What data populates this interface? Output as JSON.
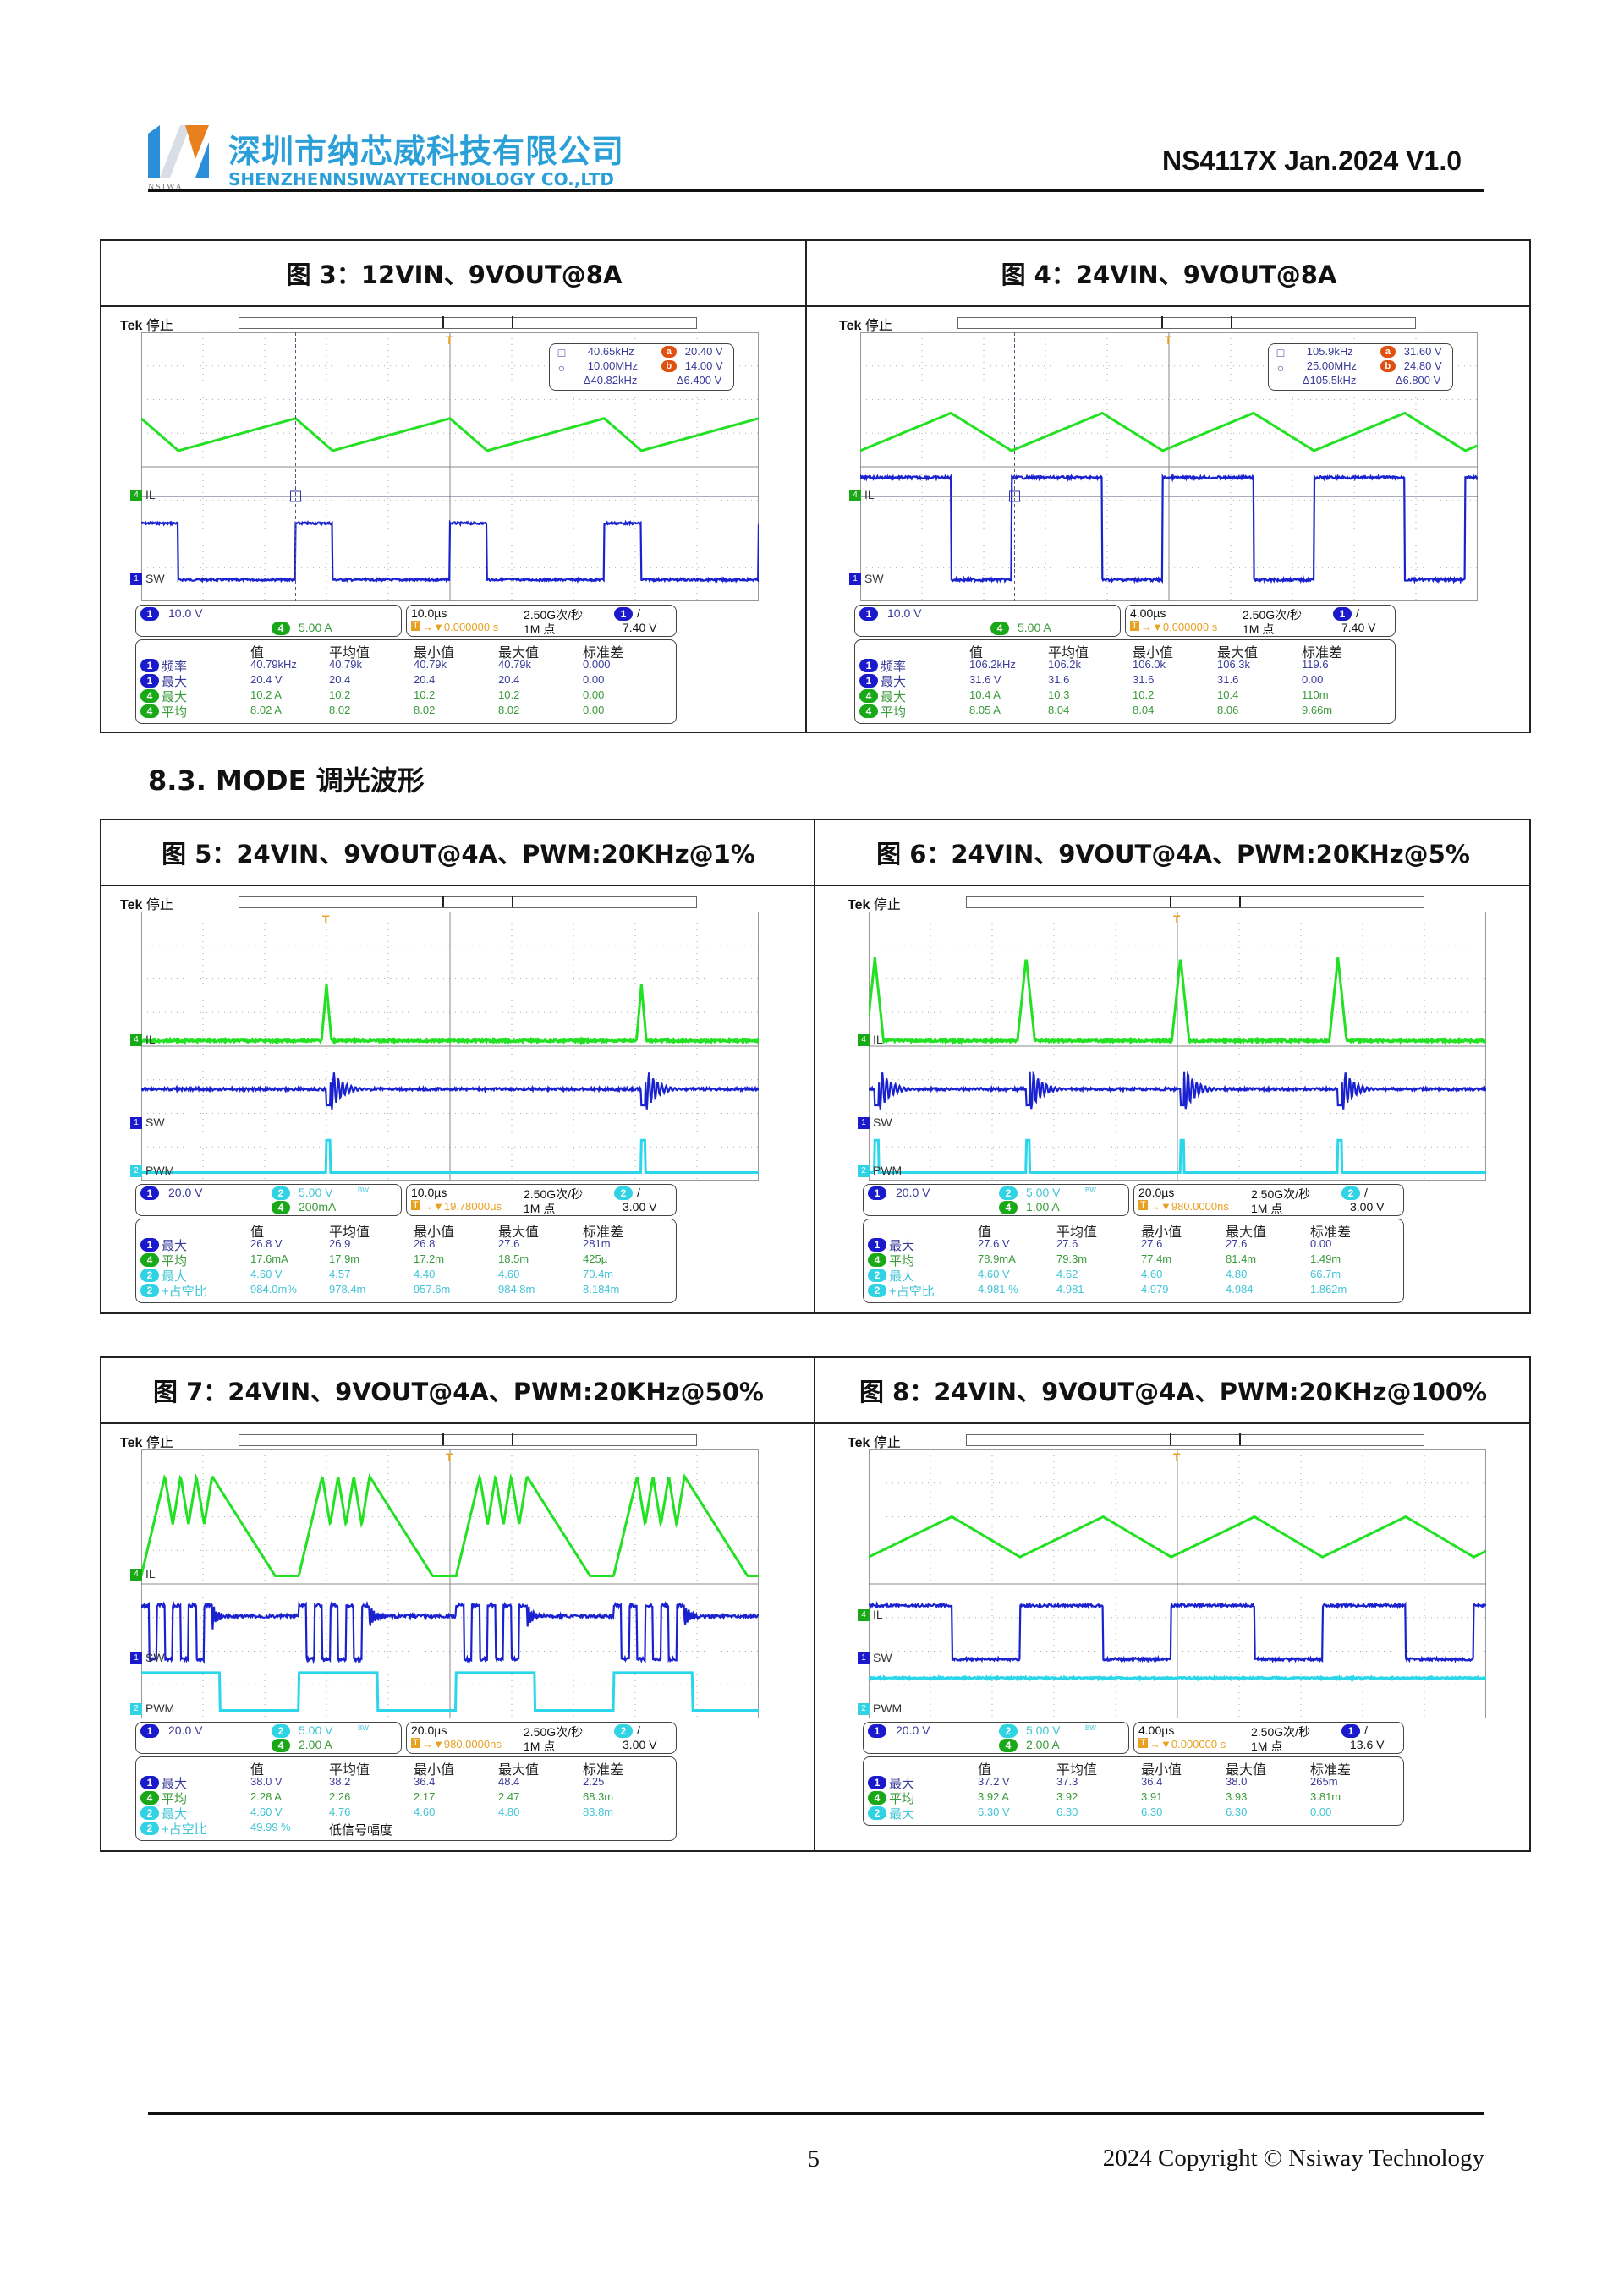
{
  "header": {
    "logo_text": "NSIWA",
    "company_cn": "深圳市纳芯威科技有限公司",
    "company_en": "SHENZHENNSIWAYTECHNOLOGY CO.,LTD",
    "doc_id": "NS4117X Jan.2024 V1.0"
  },
  "section_title": "8.3. MODE 调光波形",
  "colors": {
    "ch1": "#1a1acc",
    "ch2": "#2fd3e3",
    "ch4": "#18a818",
    "trace_green": "#22e022",
    "trace_blue": "#1a22d0",
    "trace_cyan": "#2ad6ea",
    "marker_orange": "#e8a020",
    "cursor_red": "#e05010"
  },
  "meas_headers": [
    "值",
    "平均值",
    "最小值",
    "最大值",
    "标准差"
  ],
  "scope_common": {
    "brand": "Tek",
    "state": "停止",
    "sample_rate": "2.50G次/秒",
    "record": "1M 点"
  },
  "figures": [
    {
      "title": "图 3：12VIN、9VOUT@8A",
      "channels": [
        "IL",
        "SW"
      ],
      "ch1_scale": "10.0 V",
      "ch2_scale": "",
      "ch4_scale": "5.00 A",
      "bw_mark": "",
      "timebase": "10.0µs",
      "trigger_pos": "→▼0.000000 s",
      "trigger_ch": "1",
      "trigger_level": "7.40 V",
      "cursor": {
        "f1": "40.65kHz",
        "f2": "10.00MHz",
        "df": "Δ40.82kHz",
        "va": "20.40 V",
        "vb": "14.00 V",
        "dv": "Δ6.400 V"
      },
      "rows": [
        {
          "ch": "1",
          "label": "频率",
          "v": [
            "40.79kHz",
            "40.79k",
            "40.79k",
            "40.79k",
            "0.000"
          ]
        },
        {
          "ch": "1",
          "label": "最大",
          "v": [
            "20.4 V",
            "20.4",
            "20.4",
            "20.4",
            "0.00"
          ]
        },
        {
          "ch": "4",
          "label": "最大",
          "v": [
            "10.2 A",
            "10.2",
            "10.2",
            "10.2",
            "0.00"
          ]
        },
        {
          "ch": "4",
          "label": "平均",
          "v": [
            "8.02 A",
            "8.02",
            "8.02",
            "8.02",
            "0.00"
          ]
        }
      ]
    },
    {
      "title": "图 4：24VIN、9VOUT@8A",
      "channels": [
        "IL",
        "SW"
      ],
      "ch1_scale": "10.0 V",
      "ch2_scale": "",
      "ch4_scale": "5.00 A",
      "bw_mark": "",
      "timebase": "4.00µs",
      "trigger_pos": "→▼0.000000 s",
      "trigger_ch": "1",
      "trigger_level": "7.40 V",
      "cursor": {
        "f1": "105.9kHz",
        "f2": "25.00MHz",
        "df": "Δ105.5kHz",
        "va": "31.60 V",
        "vb": "24.80 V",
        "dv": "Δ6.800 V"
      },
      "rows": [
        {
          "ch": "1",
          "label": "频率",
          "v": [
            "106.2kHz",
            "106.2k",
            "106.0k",
            "106.3k",
            "119.6"
          ]
        },
        {
          "ch": "1",
          "label": "最大",
          "v": [
            "31.6 V",
            "31.6",
            "31.6",
            "31.6",
            "0.00"
          ]
        },
        {
          "ch": "4",
          "label": "最大",
          "v": [
            "10.4 A",
            "10.3",
            "10.2",
            "10.4",
            "110m"
          ]
        },
        {
          "ch": "4",
          "label": "平均",
          "v": [
            "8.05 A",
            "8.04",
            "8.04",
            "8.06",
            "9.66m"
          ]
        }
      ]
    },
    {
      "title": "图 5：24VIN、9VOUT@4A、PWM:20KHz@1%",
      "channels": [
        "IL",
        "SW",
        "PWM"
      ],
      "ch1_scale": "20.0 V",
      "ch2_scale": "5.00 V",
      "ch4_scale": "200mA",
      "bw_mark": "BW",
      "timebase": "10.0µs",
      "trigger_pos": "→▼19.78000µs",
      "trigger_ch": "2",
      "trigger_level": "3.00 V",
      "rows": [
        {
          "ch": "1",
          "label": "最大",
          "v": [
            "26.8 V",
            "26.9",
            "26.8",
            "27.6",
            "281m"
          ]
        },
        {
          "ch": "4",
          "label": "平均",
          "v": [
            "17.6mA",
            "17.9m",
            "17.2m",
            "18.5m",
            "425µ"
          ]
        },
        {
          "ch": "2",
          "label": "最大",
          "v": [
            "4.60 V",
            "4.57",
            "4.40",
            "4.60",
            "70.4m"
          ]
        },
        {
          "ch": "2",
          "label": "+占空比",
          "v": [
            "984.0m%",
            "978.4m",
            "957.6m",
            "984.8m",
            "8.184m"
          ]
        }
      ]
    },
    {
      "title": "图 6：24VIN、9VOUT@4A、PWM:20KHz@5%",
      "channels": [
        "IL",
        "SW",
        "PWM"
      ],
      "ch1_scale": "20.0 V",
      "ch2_scale": "5.00 V",
      "ch4_scale": "1.00 A",
      "bw_mark": "BW",
      "timebase": "20.0µs",
      "trigger_pos": "→▼980.0000ns",
      "trigger_ch": "2",
      "trigger_level": "3.00 V",
      "rows": [
        {
          "ch": "1",
          "label": "最大",
          "v": [
            "27.6 V",
            "27.6",
            "27.6",
            "27.6",
            "0.00"
          ]
        },
        {
          "ch": "4",
          "label": "平均",
          "v": [
            "78.9mA",
            "79.3m",
            "77.4m",
            "81.4m",
            "1.49m"
          ]
        },
        {
          "ch": "2",
          "label": "最大",
          "v": [
            "4.60 V",
            "4.62",
            "4.60",
            "4.80",
            "66.7m"
          ]
        },
        {
          "ch": "2",
          "label": "+占空比",
          "v": [
            "4.981 %",
            "4.981",
            "4.979",
            "4.984",
            "1.862m"
          ]
        }
      ]
    },
    {
      "title": "图 7：24VIN、9VOUT@4A、PWM:20KHz@50%",
      "channels": [
        "IL",
        "SW",
        "PWM"
      ],
      "ch1_scale": "20.0 V",
      "ch2_scale": "5.00 V",
      "ch4_scale": "2.00 A",
      "bw_mark": "BW",
      "timebase": "20.0µs",
      "trigger_pos": "→▼980.0000ns",
      "trigger_ch": "2",
      "trigger_level": "3.00 V",
      "rows": [
        {
          "ch": "1",
          "label": "最大",
          "v": [
            "38.0 V",
            "38.2",
            "36.4",
            "48.4",
            "2.25"
          ]
        },
        {
          "ch": "4",
          "label": "平均",
          "v": [
            "2.28 A",
            "2.26",
            "2.17",
            "2.47",
            "68.3m"
          ]
        },
        {
          "ch": "2",
          "label": "最大",
          "v": [
            "4.60 V",
            "4.76",
            "4.60",
            "4.80",
            "83.8m"
          ]
        },
        {
          "ch": "2",
          "label": "+占空比",
          "v": [
            "49.99 %",
            "低信号幅度"
          ]
        }
      ]
    },
    {
      "title": "图 8：24VIN、9VOUT@4A、PWM:20KHz@100%",
      "channels": [
        "IL",
        "SW",
        "PWM"
      ],
      "ch1_scale": "20.0 V",
      "ch2_scale": "5.00 V",
      "ch4_scale": "2.00 A",
      "bw_mark": "BW",
      "timebase": "4.00µs",
      "trigger_pos": "→▼0.000000 s",
      "trigger_ch": "1",
      "trigger_level": "13.6 V",
      "rows": [
        {
          "ch": "1",
          "label": "最大",
          "v": [
            "37.2 V",
            "37.3",
            "36.4",
            "38.0",
            "265m"
          ]
        },
        {
          "ch": "4",
          "label": "平均",
          "v": [
            "3.92 A",
            "3.92",
            "3.91",
            "3.93",
            "3.81m"
          ]
        },
        {
          "ch": "2",
          "label": "最大",
          "v": [
            "6.30 V",
            "6.30",
            "6.30",
            "6.30",
            "0.00"
          ]
        }
      ]
    }
  ],
  "footer": {
    "page": "5",
    "copyright": "2024 Copyright © Nsiway Technology"
  }
}
